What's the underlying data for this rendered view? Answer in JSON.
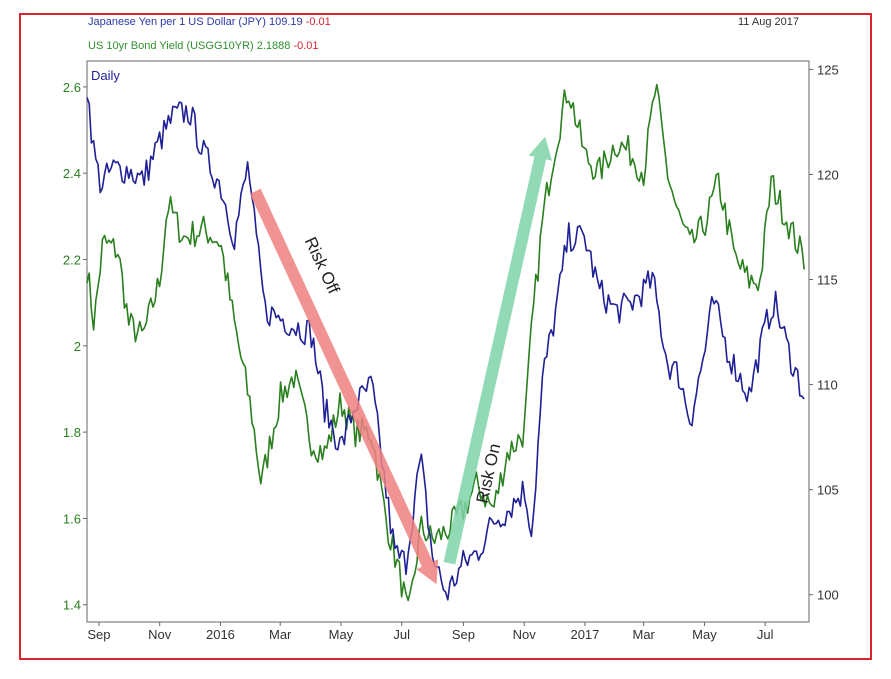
{
  "legend": {
    "jpy_name": "Japanese Yen per 1 US Dollar (JPY)",
    "jpy_value": "109.19",
    "jpy_change": "-0.01",
    "bond_name": "US 10yr Bond Yield (USGG10YR)",
    "bond_value": "2.1888",
    "bond_change": "-0.01"
  },
  "date": "11 Aug 2017",
  "colors": {
    "jpy": "#1f1f96",
    "bond": "#2a7f1f",
    "risk_off": "#f08080",
    "risk_on": "#7fd3a8",
    "frame": "#d9232e"
  },
  "chart_data": {
    "type": "line",
    "period_label": "Daily",
    "x_ticks": [
      "Sep",
      "Nov",
      "2016",
      "Mar",
      "May",
      "Jul",
      "Sep",
      "Nov",
      "2017",
      "Mar",
      "May",
      "Jul"
    ],
    "y_left": {
      "ticks": [
        "1.4",
        "1.6",
        "1.8",
        "2",
        "2.2",
        "2.4",
        "2.6"
      ],
      "range": [
        1.36,
        2.66
      ]
    },
    "y_right": {
      "ticks": [
        "100",
        "105",
        "110",
        "115",
        "120",
        "125"
      ],
      "range": [
        98.7,
        125.4
      ]
    },
    "x_range": [
      "2015-08-20",
      "2017-08-14"
    ],
    "series": [
      {
        "name": "Japanese Yen per 1 US Dollar (JPY)",
        "axis": "right",
        "x": [
          "2015-08-20",
          "2015-08-27",
          "2015-09-03",
          "2015-09-15",
          "2015-10-01",
          "2015-10-15",
          "2015-11-01",
          "2015-11-15",
          "2015-12-01",
          "2015-12-15",
          "2016-01-01",
          "2016-01-15",
          "2016-01-29",
          "2016-02-05",
          "2016-02-15",
          "2016-03-01",
          "2016-03-15",
          "2016-04-01",
          "2016-04-15",
          "2016-05-01",
          "2016-05-15",
          "2016-06-01",
          "2016-06-15",
          "2016-06-24",
          "2016-07-05",
          "2016-07-20",
          "2016-08-01",
          "2016-08-15",
          "2016-09-01",
          "2016-09-15",
          "2016-10-01",
          "2016-10-15",
          "2016-11-01",
          "2016-11-09",
          "2016-11-20",
          "2016-12-01",
          "2016-12-15",
          "2017-01-01",
          "2017-01-15",
          "2017-02-01",
          "2017-02-15",
          "2017-03-01",
          "2017-03-10",
          "2017-03-25",
          "2017-04-05",
          "2017-04-17",
          "2017-05-01",
          "2017-05-10",
          "2017-05-25",
          "2017-06-05",
          "2017-06-15",
          "2017-07-01",
          "2017-07-10",
          "2017-07-25",
          "2017-08-11"
        ],
        "values": [
          124.2,
          121.0,
          119.5,
          120.3,
          120.2,
          119.7,
          121.6,
          122.8,
          123.0,
          121.0,
          119.5,
          117.0,
          120.5,
          117.2,
          113.5,
          113.2,
          112.8,
          112.5,
          108.8,
          107.0,
          109.0,
          110.0,
          105.0,
          102.0,
          101.5,
          106.5,
          101.8,
          100.0,
          101.5,
          102.0,
          103.5,
          104.0,
          105.0,
          103.0,
          110.5,
          113.0,
          117.0,
          117.0,
          114.5,
          113.5,
          113.8,
          114.5,
          115.0,
          111.0,
          110.5,
          108.3,
          111.5,
          114.0,
          111.5,
          110.4,
          109.5,
          112.7,
          114.0,
          111.5,
          109.2
        ]
      },
      {
        "name": "US 10yr Bond Yield (USGG10YR)",
        "axis": "left",
        "x": [
          "2015-08-20",
          "2015-08-27",
          "2015-09-05",
          "2015-09-20",
          "2015-10-01",
          "2015-10-15",
          "2015-11-01",
          "2015-11-09",
          "2015-11-25",
          "2015-12-15",
          "2016-01-01",
          "2016-01-15",
          "2016-02-01",
          "2016-02-11",
          "2016-03-01",
          "2016-03-15",
          "2016-04-01",
          "2016-04-15",
          "2016-05-01",
          "2016-05-15",
          "2016-06-01",
          "2016-06-15",
          "2016-07-01",
          "2016-07-08",
          "2016-07-20",
          "2016-08-01",
          "2016-08-15",
          "2016-09-01",
          "2016-09-15",
          "2016-10-01",
          "2016-10-15",
          "2016-11-01",
          "2016-11-09",
          "2016-11-20",
          "2016-12-01",
          "2016-12-15",
          "2017-01-01",
          "2017-01-15",
          "2017-02-01",
          "2017-02-15",
          "2017-03-01",
          "2017-03-13",
          "2017-03-25",
          "2017-04-05",
          "2017-04-17",
          "2017-05-01",
          "2017-05-15",
          "2017-06-01",
          "2017-06-15",
          "2017-06-26",
          "2017-07-07",
          "2017-07-25",
          "2017-08-11"
        ],
        "values": [
          2.18,
          2.05,
          2.24,
          2.22,
          2.05,
          2.02,
          2.15,
          2.33,
          2.25,
          2.27,
          2.24,
          2.05,
          1.85,
          1.68,
          1.88,
          1.93,
          1.78,
          1.75,
          1.87,
          1.8,
          1.8,
          1.6,
          1.45,
          1.37,
          1.58,
          1.55,
          1.57,
          1.62,
          1.68,
          1.62,
          1.75,
          1.8,
          2.05,
          2.3,
          2.45,
          2.6,
          2.44,
          2.4,
          2.47,
          2.45,
          2.4,
          2.6,
          2.4,
          2.3,
          2.23,
          2.28,
          2.38,
          2.2,
          2.15,
          2.15,
          2.38,
          2.28,
          2.19
        ]
      }
    ],
    "annotations": [
      {
        "text": "Risk Off",
        "from": {
          "x": "2016-02-05",
          "y_right": 119.2
        },
        "to": {
          "x": "2016-08-05",
          "y_right": 100.5
        }
      },
      {
        "text": "Risk On",
        "from": {
          "x": "2016-08-18",
          "y_right": 101.5
        },
        "to": {
          "x": "2016-11-22",
          "y_right": 121.8
        }
      }
    ]
  }
}
